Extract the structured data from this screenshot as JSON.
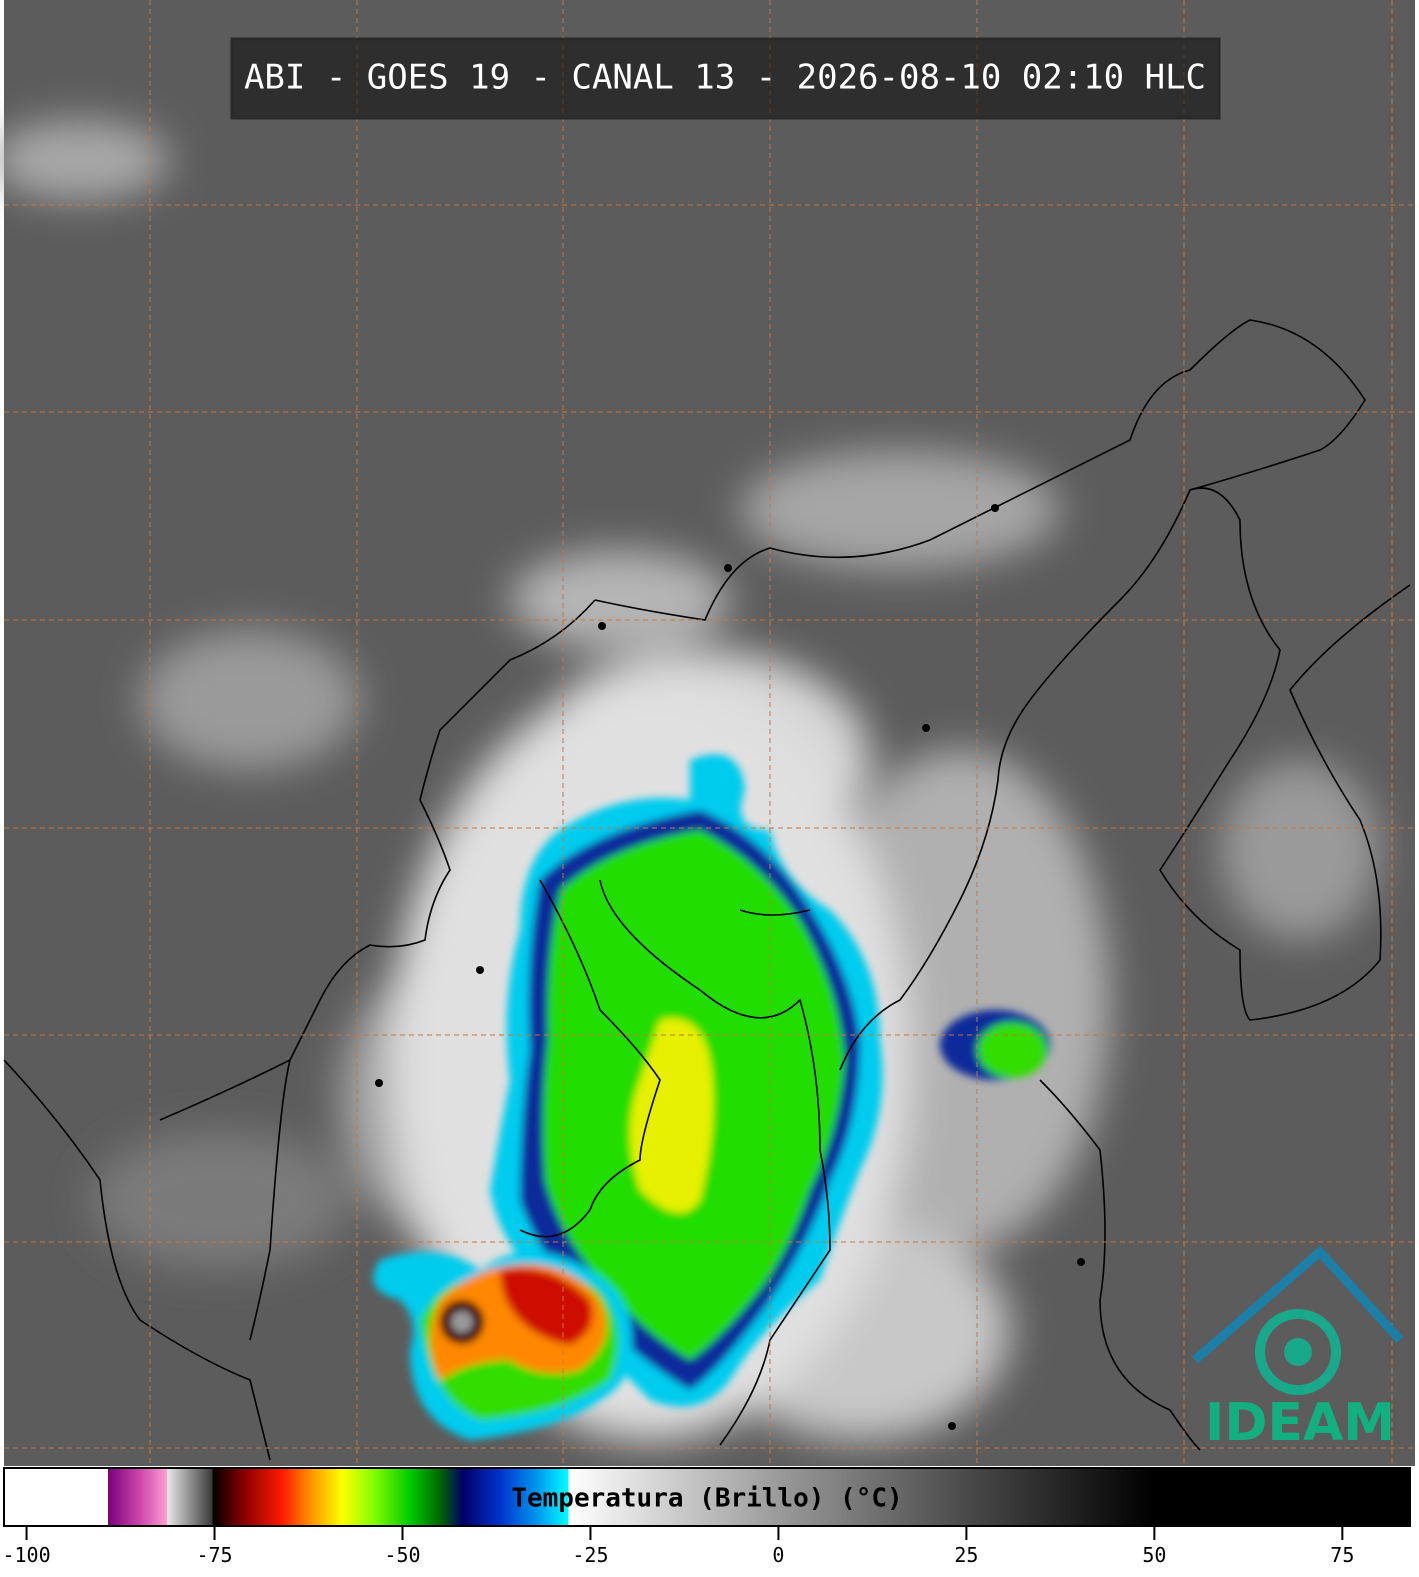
{
  "header": {
    "title": "ABI - GOES 19 - CANAL 13 - 2026-08-10 02:10 HLC"
  },
  "logo": {
    "text": "IDEAM"
  },
  "colorbar": {
    "label": "Temperatura (Brillo) (°C)",
    "lim": [
      -103,
      84
    ],
    "ticks": [
      -100,
      -75,
      -50,
      -25,
      0,
      25,
      50,
      75
    ],
    "stops": [
      [
        -103,
        "#ffffff"
      ],
      [
        -89.2,
        "#ffffff"
      ],
      [
        -89.2,
        "#7a007a"
      ],
      [
        -85,
        "#cc44aa"
      ],
      [
        -81.3,
        "#ff9fd0"
      ],
      [
        -81.3,
        "#e8e8e8"
      ],
      [
        -75.3,
        "#3a3a3a"
      ],
      [
        -75.3,
        "#000000"
      ],
      [
        -71,
        "#8b0000"
      ],
      [
        -66,
        "#ff1a00"
      ],
      [
        -62,
        "#ff9900"
      ],
      [
        -58,
        "#ffff00"
      ],
      [
        -54,
        "#88ff00"
      ],
      [
        -49,
        "#00cc00"
      ],
      [
        -45,
        "#006600"
      ],
      [
        -42,
        "#000066"
      ],
      [
        -37,
        "#0033cc"
      ],
      [
        -32,
        "#0099ee"
      ],
      [
        -27.9,
        "#00ffff"
      ],
      [
        -27.9,
        "#ffffff"
      ],
      [
        0,
        "#9a9a9a"
      ],
      [
        25,
        "#4a4a4a"
      ],
      [
        50,
        "#000000"
      ],
      [
        84,
        "#000000"
      ]
    ]
  }
}
